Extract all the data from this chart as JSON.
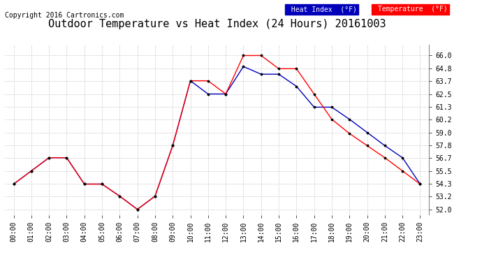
{
  "title": "Outdoor Temperature vs Heat Index (24 Hours) 20161003",
  "copyright": "Copyright 2016 Cartronics.com",
  "hours": [
    "00:00",
    "01:00",
    "02:00",
    "03:00",
    "04:00",
    "05:00",
    "06:00",
    "07:00",
    "08:00",
    "09:00",
    "10:00",
    "11:00",
    "12:00",
    "13:00",
    "14:00",
    "15:00",
    "16:00",
    "17:00",
    "18:00",
    "19:00",
    "20:00",
    "21:00",
    "22:00",
    "23:00"
  ],
  "temperature": [
    54.3,
    55.5,
    56.7,
    56.7,
    54.3,
    54.3,
    53.2,
    52.0,
    53.2,
    57.8,
    63.7,
    63.7,
    62.5,
    66.0,
    66.0,
    64.8,
    64.8,
    62.5,
    60.2,
    58.9,
    57.8,
    56.7,
    55.5,
    54.3
  ],
  "heat_index": [
    54.3,
    55.5,
    56.7,
    56.7,
    54.3,
    54.3,
    53.2,
    52.0,
    53.2,
    57.8,
    63.7,
    62.5,
    62.5,
    65.0,
    64.3,
    64.3,
    63.2,
    61.3,
    61.3,
    60.2,
    59.0,
    57.8,
    56.7,
    54.3
  ],
  "temp_color": "#ff0000",
  "heat_color": "#0000bb",
  "marker_color": "#000000",
  "ylim": [
    51.5,
    67.0
  ],
  "yticks": [
    52.0,
    53.2,
    54.3,
    55.5,
    56.7,
    57.8,
    59.0,
    60.2,
    61.3,
    62.5,
    63.7,
    64.8,
    66.0
  ],
  "bg_color": "#ffffff",
  "grid_color": "#cccccc",
  "title_fontsize": 11,
  "copyright_fontsize": 7,
  "tick_fontsize": 7,
  "legend_heat_bg": "#0000bb",
  "legend_temp_bg": "#ff0000",
  "legend_text_color": "#ffffff"
}
